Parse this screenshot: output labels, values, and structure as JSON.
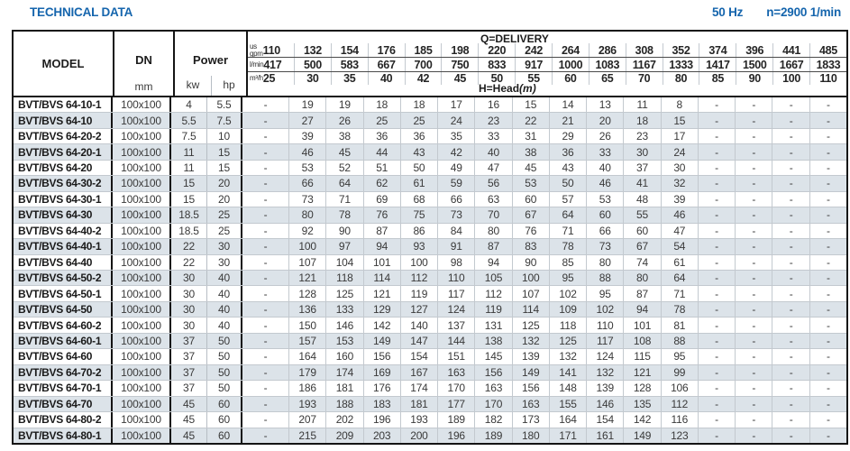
{
  "header": {
    "title": "TECHNICAL DATA",
    "frequency": "50 Hz",
    "speed": "n=2900 1/min",
    "accent_color": "#1565ad",
    "stripe_color": "#dce3e9"
  },
  "table": {
    "col_model": "MODEL",
    "col_dn": "DN",
    "dn_unit": "mm",
    "col_power": "Power",
    "power_unit_kw": "kw",
    "power_unit_hp": "hp",
    "delivery_label": "Q=DELIVERY",
    "head_label": "H=Head",
    "head_unit": "(m)",
    "unit_rows": [
      {
        "label_top": "us",
        "label": "gpm",
        "values": [
          "110",
          "132",
          "154",
          "176",
          "185",
          "198",
          "220",
          "242",
          "264",
          "286",
          "308",
          "352",
          "374",
          "396",
          "441",
          "485"
        ]
      },
      {
        "label_top": "",
        "label": "l/min",
        "values": [
          "417",
          "500",
          "583",
          "667",
          "700",
          "750",
          "833",
          "917",
          "1000",
          "1083",
          "1167",
          "1333",
          "1417",
          "1500",
          "1667",
          "1833"
        ]
      },
      {
        "label_top": "",
        "label": "m³/h",
        "values": [
          "25",
          "30",
          "35",
          "40",
          "42",
          "45",
          "50",
          "55",
          "60",
          "65",
          "70",
          "80",
          "85",
          "90",
          "100",
          "110"
        ]
      }
    ],
    "rows": [
      {
        "model": "BVT/BVS 64-10-1",
        "dn": "100x100",
        "kw": "4",
        "hp": "5.5",
        "heads": [
          "-",
          "19",
          "19",
          "18",
          "18",
          "17",
          "16",
          "15",
          "14",
          "13",
          "11",
          "8",
          "-",
          "-",
          "-",
          "-"
        ]
      },
      {
        "model": "BVT/BVS 64-10",
        "dn": "100x100",
        "kw": "5.5",
        "hp": "7.5",
        "heads": [
          "-",
          "27",
          "26",
          "25",
          "25",
          "24",
          "23",
          "22",
          "21",
          "20",
          "18",
          "15",
          "-",
          "-",
          "-",
          "-"
        ]
      },
      {
        "model": "BVT/BVS 64-20-2",
        "dn": "100x100",
        "kw": "7.5",
        "hp": "10",
        "heads": [
          "-",
          "39",
          "38",
          "36",
          "36",
          "35",
          "33",
          "31",
          "29",
          "26",
          "23",
          "17",
          "-",
          "-",
          "-",
          "-"
        ]
      },
      {
        "model": "BVT/BVS 64-20-1",
        "dn": "100x100",
        "kw": "11",
        "hp": "15",
        "heads": [
          "-",
          "46",
          "45",
          "44",
          "43",
          "42",
          "40",
          "38",
          "36",
          "33",
          "30",
          "24",
          "-",
          "-",
          "-",
          "-"
        ]
      },
      {
        "model": "BVT/BVS 64-20",
        "dn": "100x100",
        "kw": "11",
        "hp": "15",
        "heads": [
          "-",
          "53",
          "52",
          "51",
          "50",
          "49",
          "47",
          "45",
          "43",
          "40",
          "37",
          "30",
          "-",
          "-",
          "-",
          "-"
        ]
      },
      {
        "model": "BVT/BVS 64-30-2",
        "dn": "100x100",
        "kw": "15",
        "hp": "20",
        "heads": [
          "-",
          "66",
          "64",
          "62",
          "61",
          "59",
          "56",
          "53",
          "50",
          "46",
          "41",
          "32",
          "-",
          "-",
          "-",
          "-"
        ]
      },
      {
        "model": "BVT/BVS 64-30-1",
        "dn": "100x100",
        "kw": "15",
        "hp": "20",
        "heads": [
          "-",
          "73",
          "71",
          "69",
          "68",
          "66",
          "63",
          "60",
          "57",
          "53",
          "48",
          "39",
          "-",
          "-",
          "-",
          "-"
        ]
      },
      {
        "model": "BVT/BVS 64-30",
        "dn": "100x100",
        "kw": "18.5",
        "hp": "25",
        "heads": [
          "-",
          "80",
          "78",
          "76",
          "75",
          "73",
          "70",
          "67",
          "64",
          "60",
          "55",
          "46",
          "-",
          "-",
          "-",
          "-"
        ]
      },
      {
        "model": "BVT/BVS 64-40-2",
        "dn": "100x100",
        "kw": "18.5",
        "hp": "25",
        "heads": [
          "-",
          "92",
          "90",
          "87",
          "86",
          "84",
          "80",
          "76",
          "71",
          "66",
          "60",
          "47",
          "-",
          "-",
          "-",
          "-"
        ]
      },
      {
        "model": "BVT/BVS 64-40-1",
        "dn": "100x100",
        "kw": "22",
        "hp": "30",
        "heads": [
          "-",
          "100",
          "97",
          "94",
          "93",
          "91",
          "87",
          "83",
          "78",
          "73",
          "67",
          "54",
          "-",
          "-",
          "-",
          "-"
        ]
      },
      {
        "model": "BVT/BVS 64-40",
        "dn": "100x100",
        "kw": "22",
        "hp": "30",
        "heads": [
          "-",
          "107",
          "104",
          "101",
          "100",
          "98",
          "94",
          "90",
          "85",
          "80",
          "74",
          "61",
          "-",
          "-",
          "-",
          "-"
        ]
      },
      {
        "model": "BVT/BVS 64-50-2",
        "dn": "100x100",
        "kw": "30",
        "hp": "40",
        "heads": [
          "-",
          "121",
          "118",
          "114",
          "112",
          "110",
          "105",
          "100",
          "95",
          "88",
          "80",
          "64",
          "-",
          "-",
          "-",
          "-"
        ]
      },
      {
        "model": "BVT/BVS 64-50-1",
        "dn": "100x100",
        "kw": "30",
        "hp": "40",
        "heads": [
          "-",
          "128",
          "125",
          "121",
          "119",
          "117",
          "112",
          "107",
          "102",
          "95",
          "87",
          "71",
          "-",
          "-",
          "-",
          "-"
        ]
      },
      {
        "model": "BVT/BVS 64-50",
        "dn": "100x100",
        "kw": "30",
        "hp": "40",
        "heads": [
          "-",
          "136",
          "133",
          "129",
          "127",
          "124",
          "119",
          "114",
          "109",
          "102",
          "94",
          "78",
          "-",
          "-",
          "-",
          "-"
        ]
      },
      {
        "model": "BVT/BVS 64-60-2",
        "dn": "100x100",
        "kw": "30",
        "hp": "40",
        "heads": [
          "-",
          "150",
          "146",
          "142",
          "140",
          "137",
          "131",
          "125",
          "118",
          "110",
          "101",
          "81",
          "-",
          "-",
          "-",
          "-"
        ]
      },
      {
        "model": "BVT/BVS 64-60-1",
        "dn": "100x100",
        "kw": "37",
        "hp": "50",
        "heads": [
          "-",
          "157",
          "153",
          "149",
          "147",
          "144",
          "138",
          "132",
          "125",
          "117",
          "108",
          "88",
          "-",
          "-",
          "-",
          "-"
        ]
      },
      {
        "model": "BVT/BVS 64-60",
        "dn": "100x100",
        "kw": "37",
        "hp": "50",
        "heads": [
          "-",
          "164",
          "160",
          "156",
          "154",
          "151",
          "145",
          "139",
          "132",
          "124",
          "115",
          "95",
          "-",
          "-",
          "-",
          "-"
        ]
      },
      {
        "model": "BVT/BVS 64-70-2",
        "dn": "100x100",
        "kw": "37",
        "hp": "50",
        "heads": [
          "-",
          "179",
          "174",
          "169",
          "167",
          "163",
          "156",
          "149",
          "141",
          "132",
          "121",
          "99",
          "-",
          "-",
          "-",
          "-"
        ]
      },
      {
        "model": "BVT/BVS 64-70-1",
        "dn": "100x100",
        "kw": "37",
        "hp": "50",
        "heads": [
          "-",
          "186",
          "181",
          "176",
          "174",
          "170",
          "163",
          "156",
          "148",
          "139",
          "128",
          "106",
          "-",
          "-",
          "-",
          "-"
        ]
      },
      {
        "model": "BVT/BVS 64-70",
        "dn": "100x100",
        "kw": "45",
        "hp": "60",
        "heads": [
          "-",
          "193",
          "188",
          "183",
          "181",
          "177",
          "170",
          "163",
          "155",
          "146",
          "135",
          "112",
          "-",
          "-",
          "-",
          "-"
        ]
      },
      {
        "model": "BVT/BVS 64-80-2",
        "dn": "100x100",
        "kw": "45",
        "hp": "60",
        "heads": [
          "-",
          "207",
          "202",
          "196",
          "193",
          "189",
          "182",
          "173",
          "164",
          "154",
          "142",
          "116",
          "-",
          "-",
          "-",
          "-"
        ]
      },
      {
        "model": "BVT/BVS 64-80-1",
        "dn": "100x100",
        "kw": "45",
        "hp": "60",
        "heads": [
          "-",
          "215",
          "209",
          "203",
          "200",
          "196",
          "189",
          "180",
          "171",
          "161",
          "149",
          "123",
          "-",
          "-",
          "-",
          "-"
        ]
      }
    ]
  }
}
